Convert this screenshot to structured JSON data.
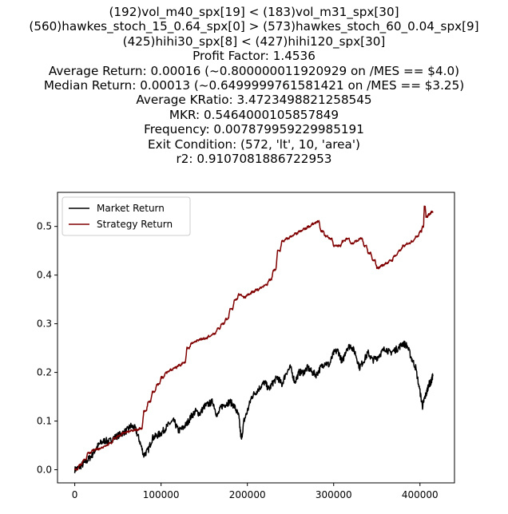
{
  "chart_data": {
    "type": "line",
    "title_lines": [
      "(192)vol_m40_spx[19] < (183)vol_m31_spx[30]",
      "(560)hawkes_stoch_15_0.64_spx[0] > (573)hawkes_stoch_60_0.04_spx[9]",
      "(425)hihi30_spx[8] < (427)hihi120_spx[30]",
      "Profit Factor: 1.4536",
      "Average Return: 0.00016 (~0.800000011920929 on /MES == $4.0)",
      "Median Return: 0.00013 (~0.6499999761581421 on /MES == $3.25)",
      "Average KRatio: 3.4723498821258545",
      "MKR: 0.5464000105857849",
      "Frequency: 0.007879959229985191",
      "Exit Condition: (572, 'lt', 10, 'area')",
      "r2: 0.9107081886722953"
    ],
    "xlim": [
      -20000,
      440000
    ],
    "ylim": [
      -0.027,
      0.57
    ],
    "x_ticks": [
      0,
      100000,
      200000,
      300000,
      400000
    ],
    "x_tick_labels": [
      "0",
      "100000",
      "200000",
      "300000",
      "400000"
    ],
    "y_ticks": [
      0.0,
      0.1,
      0.2,
      0.3,
      0.4,
      0.5
    ],
    "y_tick_labels": [
      "0.0",
      "0.1",
      "0.2",
      "0.3",
      "0.4",
      "0.5"
    ],
    "legend_position": "upper-left",
    "series": [
      {
        "name": "Market Return",
        "color": "#000000",
        "x": [
          0,
          5000,
          10000,
          15000,
          20000,
          25000,
          30000,
          35000,
          40000,
          45000,
          50000,
          55000,
          60000,
          65000,
          70000,
          75000,
          80000,
          85000,
          90000,
          95000,
          100000,
          105000,
          110000,
          115000,
          120000,
          125000,
          130000,
          135000,
          140000,
          145000,
          150000,
          155000,
          160000,
          165000,
          170000,
          175000,
          180000,
          185000,
          190000,
          193000,
          196000,
          200000,
          205000,
          210000,
          215000,
          220000,
          225000,
          230000,
          235000,
          240000,
          245000,
          250000,
          255000,
          260000,
          265000,
          270000,
          275000,
          280000,
          285000,
          290000,
          295000,
          300000,
          305000,
          310000,
          315000,
          320000,
          325000,
          330000,
          335000,
          340000,
          345000,
          350000,
          355000,
          360000,
          365000,
          370000,
          375000,
          380000,
          385000,
          390000,
          395000,
          400000,
          403000,
          405000,
          408000,
          410000,
          413000,
          415000
        ],
        "y": [
          0.0,
          0.005,
          0.012,
          0.02,
          0.03,
          0.045,
          0.055,
          0.06,
          0.058,
          0.065,
          0.07,
          0.075,
          0.08,
          0.09,
          0.085,
          0.06,
          0.03,
          0.04,
          0.065,
          0.07,
          0.075,
          0.085,
          0.095,
          0.1,
          0.08,
          0.085,
          0.095,
          0.11,
          0.12,
          0.115,
          0.13,
          0.135,
          0.14,
          0.11,
          0.13,
          0.135,
          0.14,
          0.13,
          0.11,
          0.06,
          0.1,
          0.12,
          0.15,
          0.16,
          0.17,
          0.18,
          0.165,
          0.18,
          0.19,
          0.175,
          0.2,
          0.21,
          0.18,
          0.2,
          0.2,
          0.21,
          0.2,
          0.195,
          0.21,
          0.22,
          0.215,
          0.24,
          0.245,
          0.22,
          0.25,
          0.255,
          0.24,
          0.21,
          0.225,
          0.24,
          0.225,
          0.23,
          0.24,
          0.25,
          0.24,
          0.245,
          0.25,
          0.26,
          0.255,
          0.23,
          0.21,
          0.16,
          0.13,
          0.145,
          0.16,
          0.175,
          0.18,
          0.195
        ]
      },
      {
        "name": "Strategy Return",
        "color": "#800000",
        "x": [
          0,
          5000,
          10000,
          15000,
          20000,
          25000,
          30000,
          35000,
          40000,
          45000,
          50000,
          55000,
          60000,
          65000,
          70000,
          75000,
          80000,
          85000,
          90000,
          95000,
          100000,
          105000,
          110000,
          115000,
          120000,
          125000,
          130000,
          135000,
          140000,
          145000,
          150000,
          155000,
          160000,
          165000,
          170000,
          175000,
          180000,
          185000,
          190000,
          195000,
          200000,
          205000,
          210000,
          215000,
          220000,
          225000,
          230000,
          235000,
          240000,
          245000,
          250000,
          255000,
          260000,
          265000,
          270000,
          275000,
          280000,
          285000,
          290000,
          295000,
          300000,
          305000,
          310000,
          315000,
          320000,
          325000,
          330000,
          335000,
          340000,
          345000,
          350000,
          355000,
          360000,
          365000,
          370000,
          375000,
          380000,
          385000,
          390000,
          395000,
          400000,
          403000,
          405000,
          407000,
          410000,
          413000,
          415000
        ],
        "y": [
          0.0,
          0.01,
          0.02,
          0.035,
          0.04,
          0.042,
          0.045,
          0.05,
          0.055,
          0.065,
          0.07,
          0.075,
          0.078,
          0.08,
          0.082,
          0.085,
          0.12,
          0.14,
          0.16,
          0.175,
          0.19,
          0.2,
          0.205,
          0.21,
          0.215,
          0.22,
          0.25,
          0.26,
          0.265,
          0.268,
          0.27,
          0.275,
          0.28,
          0.29,
          0.3,
          0.31,
          0.33,
          0.35,
          0.36,
          0.355,
          0.36,
          0.365,
          0.37,
          0.375,
          0.38,
          0.39,
          0.41,
          0.45,
          0.47,
          0.475,
          0.48,
          0.485,
          0.49,
          0.495,
          0.5,
          0.505,
          0.51,
          0.49,
          0.48,
          0.475,
          0.46,
          0.46,
          0.47,
          0.475,
          0.465,
          0.47,
          0.475,
          0.46,
          0.445,
          0.43,
          0.415,
          0.42,
          0.425,
          0.43,
          0.44,
          0.45,
          0.46,
          0.465,
          0.47,
          0.48,
          0.49,
          0.5,
          0.54,
          0.52,
          0.525,
          0.53,
          0.528
        ]
      }
    ]
  }
}
